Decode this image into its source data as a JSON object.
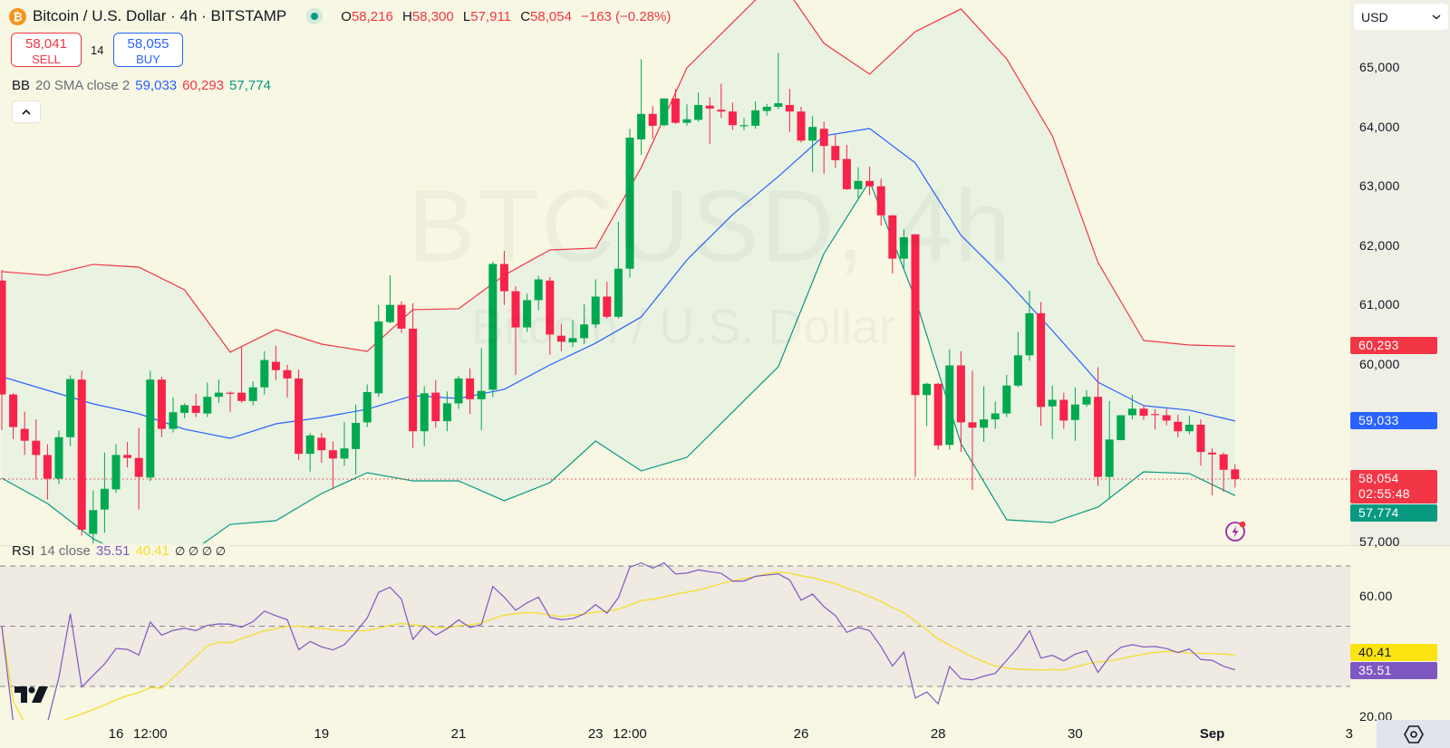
{
  "header": {
    "symbol_title": "Bitcoin / U.S. Dollar · 4h · BITSTAMP",
    "ohlc": {
      "o_label": "O",
      "o": "58,216",
      "h_label": "H",
      "h": "58,300",
      "l_label": "L",
      "l": "57,911",
      "c_label": "C",
      "c": "58,054",
      "change": "−163 (−0.28%)"
    },
    "market_status_icon": "market-open-dot"
  },
  "trade": {
    "sell_price": "58,041",
    "sell_label": "SELL",
    "spread": "14",
    "buy_price": "58,055",
    "buy_label": "BUY"
  },
  "bb_legend": {
    "name": "BB",
    "params": "20 SMA close 2",
    "basis": "59,033",
    "upper": "60,293",
    "lower": "57,774"
  },
  "rsi_legend": {
    "name": "RSI",
    "params": "14 close",
    "rsi": "35.51",
    "ma": "40.41",
    "extras": "∅ ∅ ∅ ∅"
  },
  "currency_select": "USD",
  "watermark": {
    "line1": "BTCUSD, 4h",
    "line2": "Bitcoin / U.S. Dollar"
  },
  "price_axis": {
    "ticks": [
      "65,000",
      "64,000",
      "63,000",
      "62,000",
      "61,000",
      "60,000",
      "57,000"
    ],
    "tags": {
      "upper": "60,293",
      "basis": "59,033",
      "last": "58,054",
      "countdown": "02:55:48",
      "lower": "57,774"
    }
  },
  "rsi_axis": {
    "ticks": [
      "60.00",
      "20.00"
    ],
    "tags": {
      "ma": "40.41",
      "rsi": "35.51"
    }
  },
  "time_axis": {
    "labels": [
      "16",
      "12:00",
      "19",
      "21",
      "23",
      "12:00",
      "26",
      "28",
      "30",
      "Sep",
      "3"
    ]
  },
  "colors": {
    "up": "#00a94f",
    "down": "#f7234a",
    "bb_upper": "#f23645",
    "bb_basis": "#2962ff",
    "bb_lower": "#089981",
    "bb_fill": "#eaf2e2",
    "rsi": "#7e57c2",
    "rsi_ma": "#f5df2a",
    "rsi_band": "#efeae2",
    "last_price_line": "#f23645"
  },
  "icons": {
    "logo": "bitcoin-logo",
    "collapse": "chevron-up-icon",
    "alert": "lightning-alert-icon",
    "settings": "settings-hexagon-icon",
    "brand": "tradingview-logo"
  },
  "chart_data": {
    "type": "candlestick",
    "interval": "4h",
    "ylim": [
      57000,
      65000
    ],
    "grid": false,
    "candles_ohlc": [
      [
        61400,
        61580,
        58880,
        59480
      ],
      [
        59480,
        59500,
        58730,
        58930
      ],
      [
        58900,
        59190,
        58460,
        58700
      ],
      [
        58700,
        59060,
        58050,
        58460
      ],
      [
        58460,
        58640,
        57710,
        58060
      ],
      [
        58060,
        58870,
        57970,
        58760
      ],
      [
        58760,
        59800,
        58610,
        59740
      ],
      [
        59730,
        59880,
        57100,
        57200
      ],
      [
        57130,
        57860,
        56900,
        57530
      ],
      [
        57540,
        58500,
        57150,
        57890
      ],
      [
        57880,
        58640,
        57820,
        58460
      ],
      [
        58460,
        58680,
        58250,
        58410
      ],
      [
        58410,
        58920,
        57540,
        58090
      ],
      [
        58080,
        59880,
        58020,
        59730
      ],
      [
        59730,
        59780,
        58760,
        58900
      ],
      [
        58900,
        59430,
        58840,
        59180
      ],
      [
        59170,
        59330,
        59080,
        59300
      ],
      [
        59290,
        59490,
        59100,
        59170
      ],
      [
        59160,
        59680,
        59100,
        59440
      ],
      [
        59440,
        59730,
        59340,
        59510
      ],
      [
        59510,
        59530,
        59190,
        59500
      ],
      [
        59510,
        60280,
        59340,
        59370
      ],
      [
        59370,
        59700,
        59300,
        59600
      ],
      [
        59600,
        60210,
        59480,
        60060
      ],
      [
        60030,
        60300,
        59720,
        59890
      ],
      [
        59890,
        59980,
        59430,
        59750
      ],
      [
        59750,
        59900,
        58380,
        58480
      ],
      [
        58480,
        58830,
        58180,
        58790
      ],
      [
        58750,
        58830,
        58330,
        58540
      ],
      [
        58540,
        58690,
        57880,
        58400
      ],
      [
        58400,
        59010,
        58280,
        58570
      ],
      [
        58560,
        59310,
        58130,
        59000
      ],
      [
        59010,
        59650,
        58930,
        59520
      ],
      [
        59500,
        60990,
        59440,
        60710
      ],
      [
        60700,
        61490,
        60680,
        60990
      ],
      [
        60990,
        61050,
        60520,
        60590
      ],
      [
        60590,
        61020,
        58580,
        58860
      ],
      [
        58860,
        59620,
        58610,
        59500
      ],
      [
        59510,
        59720,
        58920,
        59030
      ],
      [
        59030,
        59530,
        58860,
        59330
      ],
      [
        59330,
        59790,
        59240,
        59750
      ],
      [
        59750,
        59920,
        59150,
        59400
      ],
      [
        59400,
        60260,
        58880,
        59540
      ],
      [
        59560,
        61720,
        59440,
        61680
      ],
      [
        61680,
        61900,
        60990,
        61220
      ],
      [
        61220,
        61300,
        59810,
        60610
      ],
      [
        60610,
        61180,
        60530,
        61070
      ],
      [
        61070,
        61480,
        60900,
        61420
      ],
      [
        61400,
        61460,
        60150,
        60490
      ],
      [
        60470,
        60670,
        60210,
        60370
      ],
      [
        60360,
        60730,
        60280,
        60430
      ],
      [
        60430,
        61000,
        60330,
        60660
      ],
      [
        60660,
        61420,
        60600,
        61130
      ],
      [
        61130,
        61380,
        60760,
        60790
      ],
      [
        60790,
        62390,
        60760,
        61600
      ],
      [
        61600,
        63960,
        61450,
        63810
      ],
      [
        63780,
        65130,
        63520,
        64210
      ],
      [
        64210,
        64340,
        63790,
        64010
      ],
      [
        64020,
        64470,
        64000,
        64470
      ],
      [
        64470,
        64630,
        64040,
        64060
      ],
      [
        64060,
        64370,
        64010,
        64120
      ],
      [
        64110,
        64570,
        64080,
        64360
      ],
      [
        64350,
        64490,
        63700,
        64300
      ],
      [
        64280,
        64720,
        64140,
        64250
      ],
      [
        64250,
        64400,
        63940,
        64020
      ],
      [
        64020,
        64140,
        63940,
        64020
      ],
      [
        64010,
        64420,
        63960,
        64270
      ],
      [
        64260,
        64380,
        64180,
        64330
      ],
      [
        64330,
        65240,
        64290,
        64390
      ],
      [
        64360,
        64630,
        63910,
        64250
      ],
      [
        64250,
        64330,
        63730,
        63760
      ],
      [
        63760,
        64170,
        63230,
        63990
      ],
      [
        63960,
        64080,
        63200,
        63670
      ],
      [
        63670,
        63860,
        63300,
        63430
      ],
      [
        63450,
        63690,
        62930,
        62940
      ],
      [
        62940,
        63310,
        62770,
        63080
      ],
      [
        63080,
        63320,
        62840,
        62990
      ],
      [
        62990,
        63120,
        62330,
        62500
      ],
      [
        62500,
        62500,
        61520,
        61770
      ],
      [
        61770,
        62270,
        61600,
        62130
      ],
      [
        62180,
        62180,
        58090,
        59470
      ],
      [
        59470,
        59680,
        58950,
        59660
      ],
      [
        59660,
        59680,
        58550,
        58620
      ],
      [
        58630,
        60240,
        58550,
        59970
      ],
      [
        59970,
        60210,
        58510,
        59010
      ],
      [
        59010,
        59880,
        57870,
        58920
      ],
      [
        58920,
        59620,
        58680,
        59060
      ],
      [
        59060,
        59360,
        58900,
        59160
      ],
      [
        59160,
        59810,
        59100,
        59630
      ],
      [
        59630,
        60530,
        59600,
        60140
      ],
      [
        60140,
        61230,
        60050,
        60850
      ],
      [
        60850,
        61040,
        58950,
        59270
      ],
      [
        59280,
        59630,
        58730,
        59390
      ],
      [
        59390,
        59510,
        58900,
        59040
      ],
      [
        59050,
        59600,
        58700,
        59310
      ],
      [
        59310,
        59550,
        59270,
        59440
      ],
      [
        59440,
        59940,
        57940,
        58090
      ],
      [
        58090,
        59370,
        57710,
        58720
      ],
      [
        58710,
        59130,
        58710,
        59130
      ],
      [
        59130,
        59470,
        59060,
        59240
      ],
      [
        59240,
        59300,
        59050,
        59120
      ],
      [
        59150,
        59230,
        58890,
        59140
      ],
      [
        59130,
        59240,
        58960,
        59040
      ],
      [
        59020,
        59140,
        58760,
        58860
      ],
      [
        58860,
        59120,
        58810,
        58970
      ],
      [
        58970,
        59060,
        58280,
        58510
      ],
      [
        58500,
        58570,
        57780,
        58470
      ],
      [
        58470,
        58500,
        57840,
        58210
      ],
      [
        58216,
        58300,
        57911,
        58054
      ]
    ],
    "bollinger": {
      "upper": [
        61551,
        61490,
        61673,
        61627,
        61245,
        60192,
        60574,
        60329,
        60207,
        60910,
        60925,
        61490,
        61917,
        61948,
        63307,
        64987,
        65750,
        66510,
        65399,
        64880,
        65597,
        65979,
        65139,
        63841,
        61704,
        60390,
        60314,
        60293
      ],
      "basis": [
        59780,
        59550,
        59321,
        59153,
        58894,
        58741,
        58985,
        59092,
        59230,
        59459,
        59413,
        59566,
        59978,
        60345,
        60787,
        61749,
        62513,
        63154,
        63841,
        63964,
        63383,
        62162,
        61398,
        60558,
        59688,
        59291,
        59215,
        59033
      ],
      "lower": [
        58069,
        57642,
        57046,
        56664,
        56741,
        57290,
        57352,
        57810,
        58161,
        58023,
        58023,
        57688,
        57993,
        58695,
        58191,
        58420,
        59184,
        59947,
        61856,
        63078,
        61093,
        58650,
        57367,
        57321,
        57581,
        58176,
        58146,
        57774
      ]
    },
    "rsi": {
      "period": 14,
      "levels": [
        70,
        50,
        30
      ],
      "ylim": [
        20,
        75
      ],
      "last": 35.51,
      "ma_last": 40.41
    },
    "last_price": 58054
  }
}
